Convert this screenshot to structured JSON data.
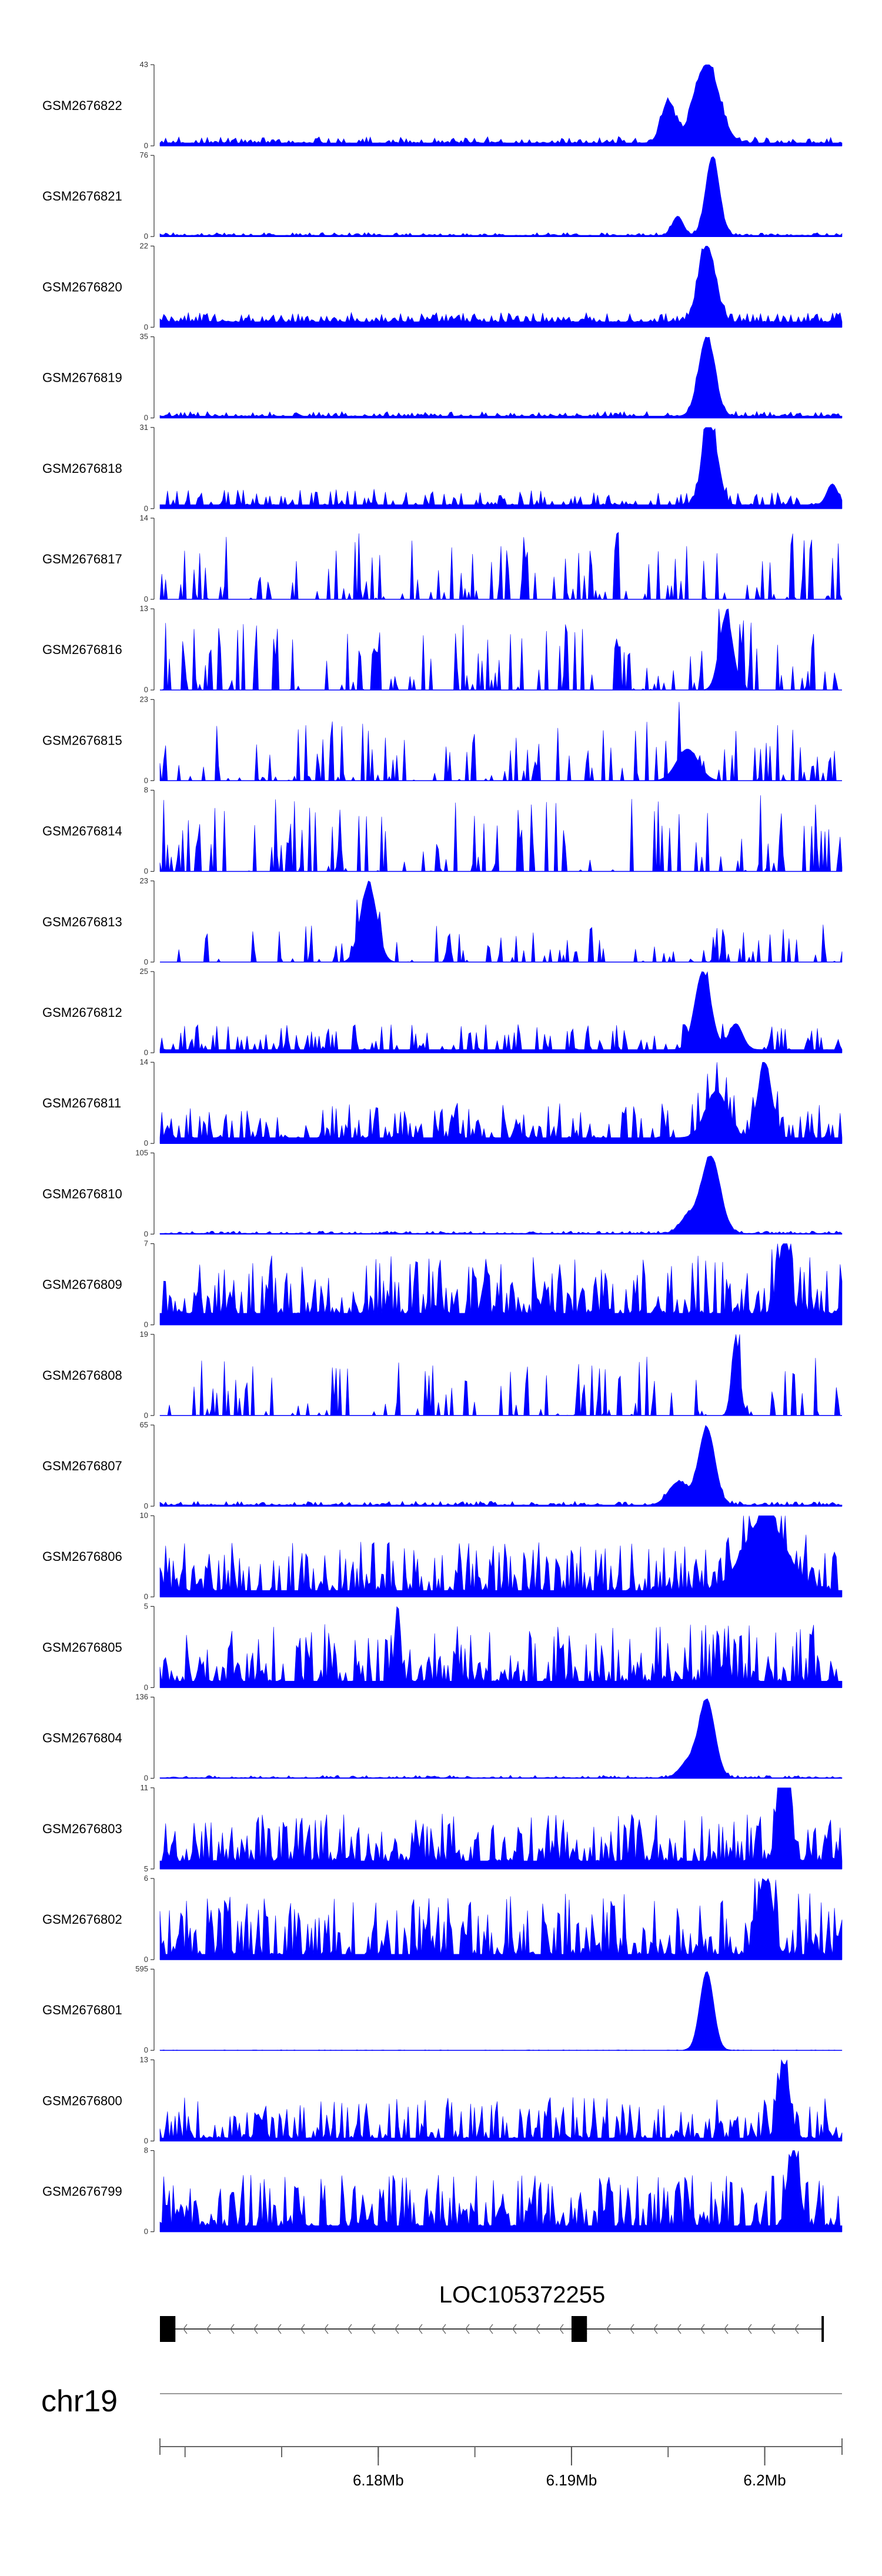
{
  "chart_data": {
    "type": "area",
    "title": "",
    "color": "#0000ff",
    "x_range": [
      6.1687,
      6.204
    ],
    "tracks": [
      {
        "name": "GSM2676822",
        "ymax": 43,
        "ymin": 0,
        "base": 1.6,
        "noise": 3.5,
        "sparsity": 0.45,
        "seed": 101,
        "peaks": [
          [
            6.197,
            42,
            0.0009
          ],
          [
            6.195,
            22,
            0.0005
          ]
        ]
      },
      {
        "name": "GSM2676821",
        "ymax": 76,
        "ymin": 0,
        "base": 1.2,
        "noise": 2.5,
        "sparsity": 0.5,
        "seed": 102,
        "peaks": [
          [
            6.1973,
            74,
            0.0005
          ],
          [
            6.1955,
            18,
            0.0004
          ]
        ]
      },
      {
        "name": "GSM2676820",
        "ymax": 22,
        "ymin": 0,
        "base": 1.5,
        "noise": 2.5,
        "sparsity": 0.3,
        "seed": 103,
        "peaks": [
          [
            6.197,
            21,
            0.0006
          ]
        ]
      },
      {
        "name": "GSM2676819",
        "ymax": 35,
        "ymin": 0,
        "base": 0.8,
        "noise": 2.0,
        "sparsity": 0.4,
        "seed": 104,
        "peaks": [
          [
            6.197,
            34,
            0.0006
          ]
        ]
      },
      {
        "name": "GSM2676818",
        "ymax": 31,
        "ymin": 0,
        "base": 1.5,
        "noise": 6.0,
        "sparsity": 0.55,
        "seed": 105,
        "peaks": [
          [
            6.197,
            30,
            0.0004
          ],
          [
            6.1975,
            15,
            0.0004
          ],
          [
            6.2035,
            8,
            0.0004
          ]
        ]
      },
      {
        "name": "GSM2676817",
        "ymax": 14,
        "ymin": 0,
        "base": 0,
        "noise": 12.0,
        "sparsity": 0.75,
        "seed": 106,
        "peaks": []
      },
      {
        "name": "GSM2676816",
        "ymax": 13,
        "ymin": 0,
        "base": 0,
        "noise": 11.0,
        "sparsity": 0.7,
        "seed": 107,
        "peaks": [
          [
            6.198,
            12,
            0.0005
          ]
        ]
      },
      {
        "name": "GSM2676815",
        "ymax": 23,
        "ymin": 0,
        "base": 0,
        "noise": 17.0,
        "sparsity": 0.72,
        "seed": 108,
        "peaks": [
          [
            6.196,
            9,
            0.0008
          ]
        ]
      },
      {
        "name": "GSM2676814",
        "ymax": 8,
        "ymin": 0,
        "base": 0,
        "noise": 7.5,
        "sparsity": 0.7,
        "seed": 109,
        "peaks": []
      },
      {
        "name": "GSM2676813",
        "ymax": 23,
        "ymin": 0,
        "base": 0,
        "noise": 12.0,
        "sparsity": 0.75,
        "seed": 110,
        "peaks": [
          [
            6.1795,
            22,
            0.0006
          ]
        ]
      },
      {
        "name": "GSM2676812",
        "ymax": 25,
        "ymin": 0,
        "base": 1,
        "noise": 8.0,
        "sparsity": 0.6,
        "seed": 111,
        "peaks": [
          [
            6.1968,
            24,
            0.0006
          ],
          [
            6.1985,
            8,
            0.0005
          ]
        ]
      },
      {
        "name": "GSM2676811",
        "ymax": 14,
        "ymin": 0,
        "base": 1,
        "noise": 6.0,
        "sparsity": 0.45,
        "seed": 112,
        "peaks": [
          [
            6.2,
            13,
            0.0005
          ],
          [
            6.1975,
            8,
            0.0008
          ]
        ]
      },
      {
        "name": "GSM2676810",
        "ymax": 105,
        "ymin": 0,
        "base": 1,
        "noise": 3.0,
        "sparsity": 0.5,
        "seed": 113,
        "peaks": [
          [
            6.1972,
            100,
            0.0007
          ],
          [
            6.196,
            20,
            0.0006
          ]
        ]
      },
      {
        "name": "GSM2676809",
        "ymax": 7,
        "ymin": 0,
        "base": 1,
        "noise": 5.0,
        "sparsity": 0.25,
        "seed": 114,
        "peaks": [
          [
            6.201,
            6.5,
            0.0004
          ]
        ]
      },
      {
        "name": "GSM2676808",
        "ymax": 19,
        "ymin": 0,
        "base": 0,
        "noise": 14.0,
        "sparsity": 0.72,
        "seed": 115,
        "peaks": [
          [
            6.1985,
            18,
            0.0003
          ]
        ]
      },
      {
        "name": "GSM2676807",
        "ymax": 65,
        "ymin": 0,
        "base": 1,
        "noise": 3.0,
        "sparsity": 0.5,
        "seed": 116,
        "peaks": [
          [
            6.197,
            62,
            0.0006
          ],
          [
            6.1955,
            18,
            0.0007
          ]
        ]
      },
      {
        "name": "GSM2676806",
        "ymax": 10,
        "ymin": 0,
        "base": 0.8,
        "noise": 6.0,
        "sparsity": 0.35,
        "seed": 117,
        "peaks": [
          [
            6.2,
            9,
            0.0015
          ]
        ]
      },
      {
        "name": "GSM2676805",
        "ymax": 5,
        "ymin": 0,
        "base": 0.4,
        "noise": 3.5,
        "sparsity": 0.3,
        "seed": 118,
        "peaks": [
          [
            6.181,
            4.8,
            0.0002
          ]
        ]
      },
      {
        "name": "GSM2676804",
        "ymax": 136,
        "ymin": 0,
        "base": 1,
        "noise": 4.0,
        "sparsity": 0.5,
        "seed": 119,
        "peaks": [
          [
            6.197,
            130,
            0.0006
          ],
          [
            6.196,
            25,
            0.0006
          ]
        ]
      },
      {
        "name": "GSM2676803",
        "ymax": 11,
        "ymin": 5,
        "base": 5.6,
        "noise": 3.5,
        "sparsity": 0.25,
        "seed": 120,
        "peaks": [
          [
            6.201,
            10.5,
            0.0004
          ]
        ]
      },
      {
        "name": "GSM2676802",
        "ymax": 6,
        "ymin": 0,
        "base": 0.4,
        "noise": 4.5,
        "sparsity": 0.25,
        "seed": 121,
        "peaks": [
          [
            6.2,
            5.5,
            0.0005
          ]
        ]
      },
      {
        "name": "GSM2676801",
        "ymax": 595,
        "ymin": 0,
        "base": 1,
        "noise": 3.0,
        "sparsity": 0.6,
        "seed": 122,
        "peaks": [
          [
            6.197,
            580,
            0.0005
          ]
        ]
      },
      {
        "name": "GSM2676800",
        "ymax": 13,
        "ymin": 0,
        "base": 0.5,
        "noise": 6.5,
        "sparsity": 0.35,
        "seed": 123,
        "peaks": [
          [
            6.201,
            12,
            0.0004
          ]
        ]
      },
      {
        "name": "GSM2676799",
        "ymax": 8,
        "ymin": 0,
        "base": 0.6,
        "noise": 5.0,
        "sparsity": 0.3,
        "seed": 124,
        "peaks": [
          [
            6.2015,
            7.6,
            0.0004
          ]
        ]
      }
    ],
    "gene": {
      "name": "LOC105372255",
      "start": 6.1687,
      "end": 6.203,
      "strand": "-",
      "exons": [
        [
          6.1687,
          6.1695
        ],
        [
          6.19,
          6.1908
        ]
      ]
    },
    "chromosome": "chr19",
    "axis": {
      "ticks": [
        6.17,
        6.175,
        6.18,
        6.185,
        6.19,
        6.195,
        6.2
      ],
      "labeled_ticks": [
        6.18,
        6.19,
        6.2
      ],
      "tick_labels": [
        "6.18Mb",
        "6.19Mb",
        "6.2Mb"
      ]
    }
  }
}
